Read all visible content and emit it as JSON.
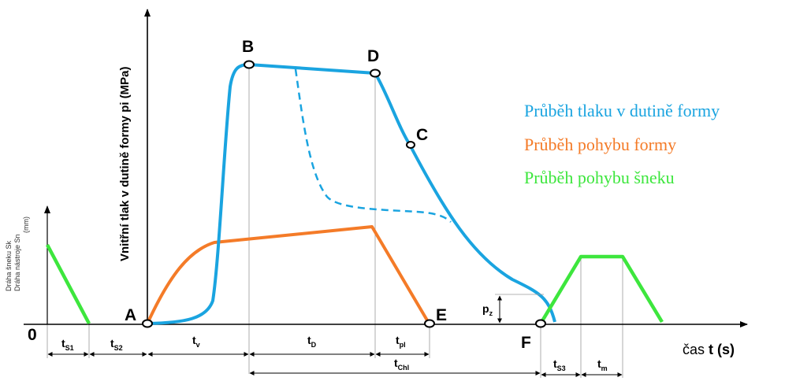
{
  "y_axis_label": "Vnitřní tlak v dutině formy pi (MPa)",
  "left_axis_label_lines": [
    "Dráha šneku Sk",
    "Dráha nástroje Sn",
    "(mm)"
  ],
  "x_axis_label": {
    "prefix": "čas ",
    "var": "t",
    "unit": " (s)"
  },
  "origin_label": "0",
  "points": {
    "A": "A",
    "B": "B",
    "C": "C",
    "D": "D",
    "E": "E",
    "F": "F"
  },
  "intervals": {
    "ts1": {
      "main": "t",
      "sub": "S1"
    },
    "ts2": {
      "main": "t",
      "sub": "S2"
    },
    "tv": {
      "main": "t",
      "sub": "v"
    },
    "tD": {
      "main": "t",
      "sub": "D"
    },
    "tpl": {
      "main": "t",
      "sub": "pl"
    },
    "tchl": {
      "main": "t",
      "sub": "Chl"
    },
    "ts3": {
      "main": "t",
      "sub": "S3"
    },
    "tm": {
      "main": "t",
      "sub": "m"
    },
    "pz": {
      "main": "p",
      "sub": "z"
    }
  },
  "legend": [
    {
      "text": "Průběh tlaku v dutině formy",
      "color": "#1aa4e0"
    },
    {
      "text": "Průběh pohybu formy",
      "color": "#f47b28"
    },
    {
      "text": "Průběh pohybu šneku",
      "color": "#3de63d"
    }
  ],
  "colors": {
    "pressure": "#1aa4e0",
    "mold": "#f47b28",
    "screw": "#3de63d",
    "axis": "#000000"
  }
}
